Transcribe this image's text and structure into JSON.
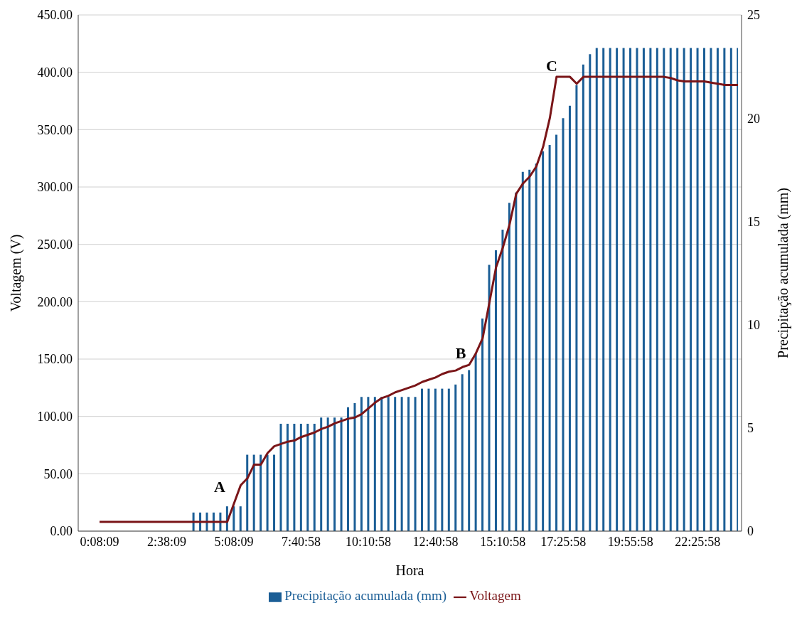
{
  "chart_data": {
    "type": "bar",
    "xlabel": "Hora",
    "ylabel": "Voltagem (V)",
    "y2label": "Precipitação acumulada (mm)",
    "categories": [
      "0:08:09",
      null,
      null,
      null,
      null,
      null,
      null,
      null,
      null,
      null,
      "2:38:09",
      null,
      null,
      null,
      null,
      null,
      null,
      null,
      null,
      null,
      "5:08:09",
      null,
      null,
      null,
      null,
      null,
      null,
      null,
      null,
      null,
      "7:40:58",
      null,
      null,
      null,
      null,
      null,
      null,
      null,
      null,
      null,
      "10:10:58",
      null,
      null,
      null,
      null,
      null,
      null,
      null,
      null,
      null,
      "12:40:58",
      null,
      null,
      null,
      null,
      null,
      null,
      null,
      null,
      null,
      "15:10:58",
      null,
      null,
      null,
      null,
      null,
      null,
      null,
      null,
      "17:25:58",
      null,
      null,
      null,
      null,
      null,
      null,
      null,
      null,
      null,
      "19:55:58",
      null,
      null,
      null,
      null,
      null,
      null,
      null,
      null,
      null,
      "22:25:58",
      null,
      null,
      null,
      null,
      null,
      null
    ],
    "series": [
      {
        "name": "Precipitação acumulada (mm)",
        "axis": "y2",
        "color": "#1b5e96",
        "values": [
          0,
          0,
          0,
          0,
          0,
          0,
          0,
          0,
          0,
          0,
          0,
          0,
          0,
          0,
          0.9,
          0.9,
          0.9,
          0.9,
          0.9,
          1.2,
          1.2,
          1.2,
          3.7,
          3.7,
          3.7,
          3.7,
          3.7,
          5.2,
          5.2,
          5.2,
          5.2,
          5.2,
          5.2,
          5.5,
          5.5,
          5.5,
          5.5,
          6.0,
          6.2,
          6.5,
          6.5,
          6.5,
          6.5,
          6.5,
          6.5,
          6.5,
          6.5,
          6.5,
          6.9,
          6.9,
          6.9,
          6.9,
          6.9,
          7.1,
          7.6,
          7.8,
          8.6,
          10.3,
          12.9,
          13.6,
          14.6,
          15.9,
          16.4,
          17.4,
          17.5,
          17.8,
          18.4,
          18.7,
          19.2,
          20.0,
          20.6,
          21.6,
          22.6,
          23.1,
          23.4,
          23.4,
          23.4,
          23.4,
          23.4,
          23.4,
          23.4,
          23.4,
          23.4,
          23.4,
          23.4,
          23.4,
          23.4,
          23.4,
          23.4,
          23.4,
          23.4,
          23.4,
          23.4,
          23.4,
          23.4,
          23.4
        ]
      },
      {
        "name": "Voltagem",
        "type": "line",
        "color": "#7a1518",
        "values": [
          8,
          8,
          8,
          8,
          8,
          8,
          8,
          8,
          8,
          8,
          8,
          8,
          8,
          8,
          8,
          8,
          8,
          8,
          8,
          8,
          24,
          40,
          46,
          58,
          58,
          68,
          74,
          76,
          78,
          79,
          82,
          84,
          86,
          89,
          91,
          94,
          96,
          98,
          99,
          102,
          107,
          112,
          116,
          118,
          121,
          123,
          125,
          127,
          130,
          132,
          134,
          137,
          139,
          140,
          143,
          145,
          155,
          168,
          199,
          230,
          247,
          267,
          294,
          303,
          309,
          318,
          335,
          360,
          396,
          396,
          396,
          390,
          396,
          396,
          396,
          396,
          396,
          396,
          396,
          396,
          396,
          396,
          396,
          396,
          396,
          395,
          393,
          392,
          392,
          392,
          392,
          391,
          390,
          389,
          389,
          389
        ]
      }
    ],
    "ylim": [
      0,
      450
    ],
    "yticks": [
      {
        "value": 0,
        "label": "0.00"
      },
      {
        "value": 50,
        "label": "50.00"
      },
      {
        "value": 100,
        "label": "100.00"
      },
      {
        "value": 150,
        "label": "150.00"
      },
      {
        "value": 200,
        "label": "200.00"
      },
      {
        "value": 250,
        "label": "250.00"
      },
      {
        "value": 300,
        "label": "300.00"
      },
      {
        "value": 350,
        "label": "350.00"
      },
      {
        "value": 400,
        "label": "400.00"
      },
      {
        "value": 450,
        "label": "450.00"
      }
    ],
    "y2lim": [
      0,
      25
    ],
    "y2ticks": [
      0,
      5,
      10,
      15,
      20,
      25
    ],
    "annotations": [
      "A",
      "B",
      "C"
    ],
    "grid": "y",
    "legend": "bottom",
    "marker": "none",
    "line_style": "solid"
  }
}
